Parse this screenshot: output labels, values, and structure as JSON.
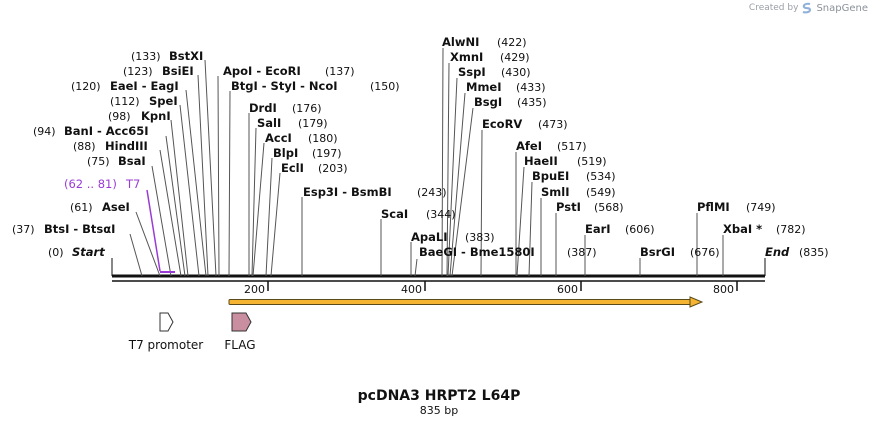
{
  "credit": {
    "prefix": "Created by",
    "brand": "SnapGene"
  },
  "title": "pcDNA3 HRPT2 L64P",
  "subtitle": "835 bp",
  "ticks": [
    "200",
    "400",
    "600",
    "800"
  ],
  "labels": {
    "start": "Start",
    "start_pos": "(0)",
    "end": "End",
    "end_pos": "(835)",
    "bme_pos": "(387)",
    "t7_primer": "T7",
    "t7_primer_pos": "(62 .. 81)"
  },
  "features": {
    "t7": "T7 promoter",
    "flag": "FLAG"
  },
  "sites": [
    {
      "name": "BtsI - BtsαI",
      "pos": "(37)"
    },
    {
      "name": "AseI",
      "pos": "(61)"
    },
    {
      "name": "BsaI",
      "pos": "(75)"
    },
    {
      "name": "HindIII",
      "pos": "(88)"
    },
    {
      "name": "BanI - Acc65I",
      "pos": "(94)"
    },
    {
      "name": "KpnI",
      "pos": "(98)"
    },
    {
      "name": "SpeI",
      "pos": "(112)"
    },
    {
      "name": "EaeI - EagI",
      "pos": "(120)"
    },
    {
      "name": "BsiEI",
      "pos": "(123)"
    },
    {
      "name": "BstXI",
      "pos": "(133)"
    },
    {
      "name": "ApoI - EcoRI",
      "pos": "(137)"
    },
    {
      "name": "BtgI - StyI - NcoI",
      "pos": "(150)"
    },
    {
      "name": "DrdI",
      "pos": "(176)"
    },
    {
      "name": "SalI",
      "pos": "(179)"
    },
    {
      "name": "AccI",
      "pos": "(180)"
    },
    {
      "name": "BlpI",
      "pos": "(197)"
    },
    {
      "name": "EclI",
      "pos": "(203)"
    },
    {
      "name": "Esp3I - BsmBI",
      "pos": "(243)"
    },
    {
      "name": "ScaI",
      "pos": "(344)"
    },
    {
      "name": "ApaLI",
      "pos": "(383)"
    },
    {
      "name": "BaeGI - Bme1580I",
      "pos": ""
    },
    {
      "name": "AlwNI",
      "pos": "(422)"
    },
    {
      "name": "XmnI",
      "pos": "(429)"
    },
    {
      "name": "SspI",
      "pos": "(430)"
    },
    {
      "name": "MmeI",
      "pos": "(433)"
    },
    {
      "name": "BsgI",
      "pos": "(435)"
    },
    {
      "name": "EcoRV",
      "pos": "(473)"
    },
    {
      "name": "AfeI",
      "pos": "(517)"
    },
    {
      "name": "HaeII",
      "pos": "(519)"
    },
    {
      "name": "BpuEI",
      "pos": "(534)"
    },
    {
      "name": "SmlI",
      "pos": "(549)"
    },
    {
      "name": "PstI",
      "pos": "(568)"
    },
    {
      "name": "EarI",
      "pos": "(606)"
    },
    {
      "name": "BsrGI",
      "pos": "(676)"
    },
    {
      "name": "PflMI",
      "pos": "(749)"
    },
    {
      "name": "XbaI *",
      "pos": "(782)"
    }
  ],
  "colors": {
    "backbone": "#111111",
    "primer": "#9b3bd6",
    "orf_fill": "#f5b533",
    "orf_stroke": "#5a4a1a",
    "flag_fill": "#c98e9f",
    "promoter_fill": "#ffffff"
  }
}
